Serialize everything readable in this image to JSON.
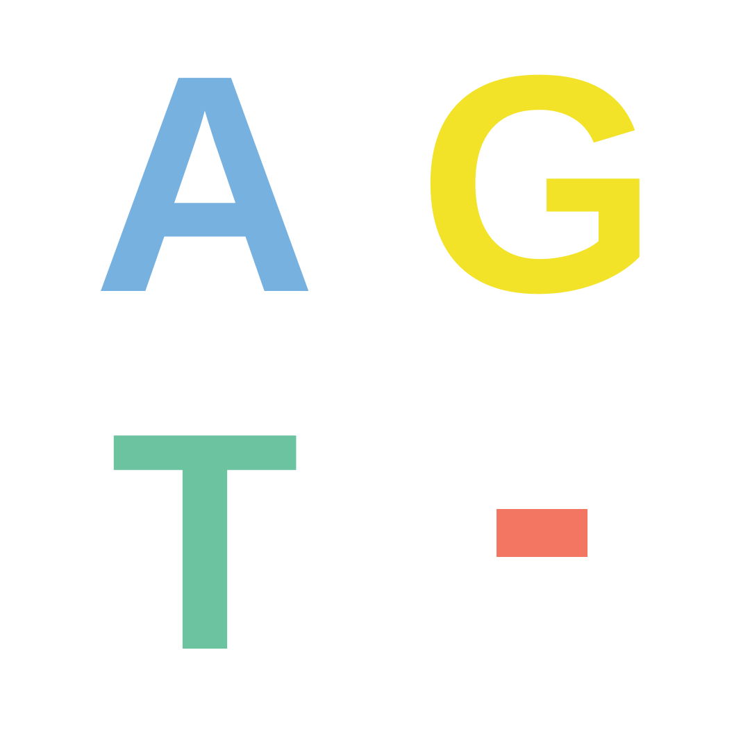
{
  "tiles": [
    {
      "label": "A",
      "color": "#77b1e0"
    },
    {
      "label": "G",
      "color": "#f2e328"
    },
    {
      "label": "T",
      "color": "#6cc39f"
    },
    {
      "label": "-",
      "color": "#f27662"
    }
  ]
}
